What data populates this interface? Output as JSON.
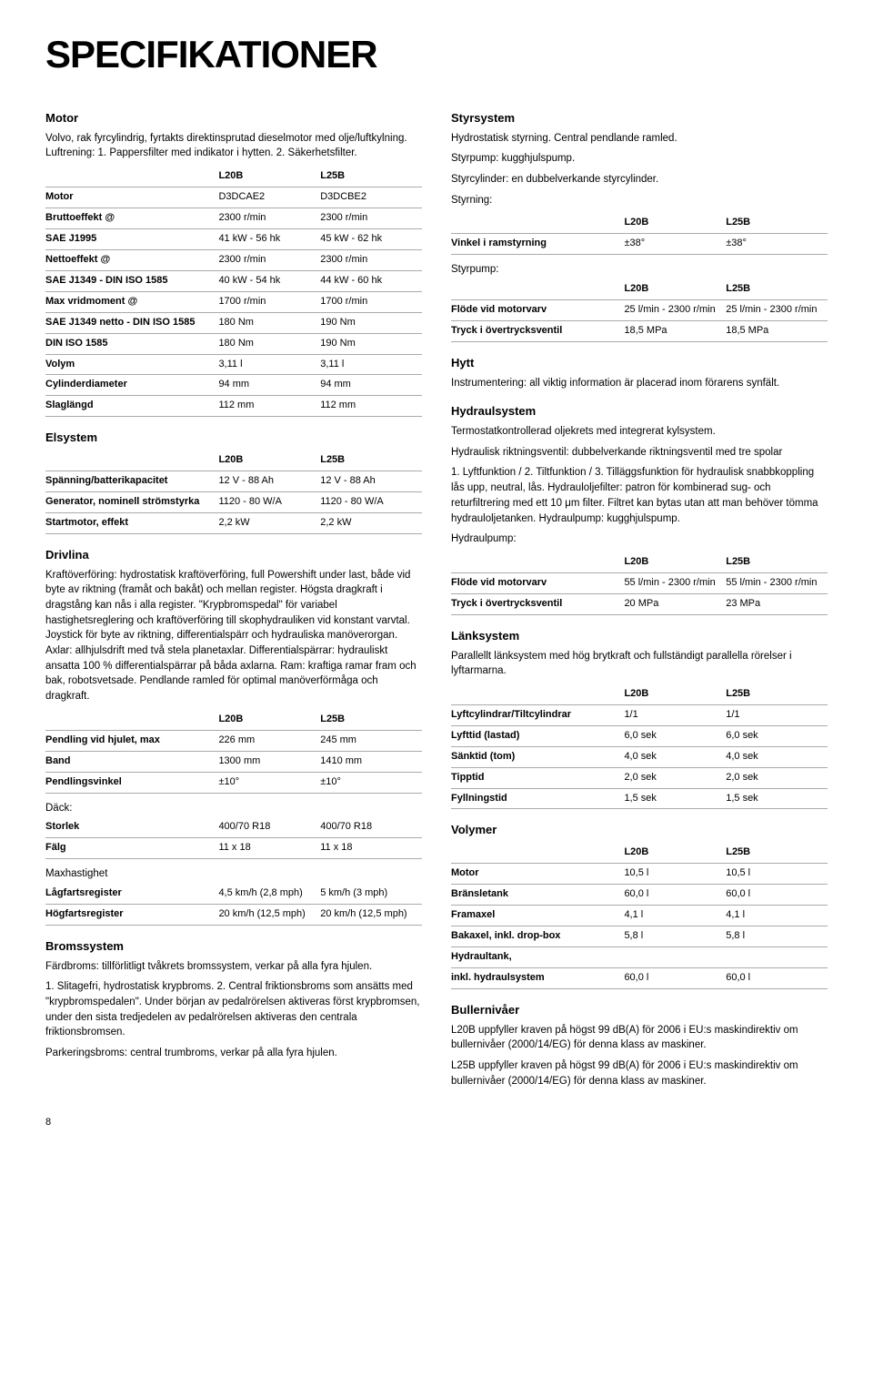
{
  "title": "SPECIFIKATIONER",
  "pageNumber": "8",
  "motor": {
    "heading": "Motor",
    "intro": "Volvo, rak fyrcylindrig, fyrtakts direktinsprutad dieselmotor med olje/luftkylning. Luftrening: 1. Pappersfilter med indikator i hytten. 2. Säkerhetsfilter.",
    "cols": [
      "",
      "L20B",
      "L25B"
    ],
    "rows": [
      [
        "Motor",
        "D3DCAE2",
        "D3DCBE2"
      ],
      [
        "Bruttoeffekt @",
        "2300 r/min",
        "2300 r/min"
      ],
      [
        "SAE J1995",
        "41 kW - 56 hk",
        "45 kW - 62 hk"
      ],
      [
        "Nettoeffekt @",
        "2300 r/min",
        "2300 r/min"
      ],
      [
        "SAE J1349 - DIN ISO 1585",
        "40 kW - 54 hk",
        "44 kW - 60 hk"
      ],
      [
        "Max vridmoment @",
        "1700 r/min",
        "1700 r/min"
      ],
      [
        "SAE J1349 netto - DIN ISO 1585",
        "180 Nm",
        "190 Nm"
      ],
      [
        "DIN ISO 1585",
        "180 Nm",
        "190 Nm"
      ],
      [
        "Volym",
        "3,11 l",
        "3,11 l"
      ],
      [
        "Cylinderdiameter",
        "94 mm",
        "94 mm"
      ],
      [
        "Slaglängd",
        "112 mm",
        "112 mm"
      ]
    ]
  },
  "elsystem": {
    "heading": "Elsystem",
    "cols": [
      "",
      "L20B",
      "L25B"
    ],
    "rows": [
      [
        "Spänning/batterikapacitet",
        "12 V - 88 Ah",
        "12 V - 88 Ah"
      ],
      [
        "Generator, nominell strömstyrka",
        "1120 - 80 W/A",
        "1120 - 80 W/A"
      ],
      [
        "Startmotor, effekt",
        "2,2 kW",
        "2,2 kW"
      ]
    ]
  },
  "drivlina": {
    "heading": "Drivlina",
    "text": "Kraftöverföring: hydrostatisk kraftöverföring, full Powershift under last, både vid byte av riktning (framåt och bakåt) och mellan register. Högsta dragkraft i dragstång kan nås i alla register. \"Krypbromspedal\" för variabel hastighetsreglering och kraftöverföring till skophydrauliken vid konstant varvtal. Joystick för byte av riktning, differentialspärr och hydrauliska manöverorgan. Axlar: allhjulsdrift med två stela planetaxlar. Differentialspärrar: hydrauliskt ansatta 100 % differentialspärrar på båda axlarna. Ram: kraftiga ramar fram och bak, robotsvetsade. Pendlande ramled för optimal manöverförmåga och dragkraft.",
    "cols": [
      "",
      "L20B",
      "L25B"
    ],
    "rows": [
      [
        "Pendling vid hjulet, max",
        "226 mm",
        "245 mm"
      ],
      [
        "Band",
        "1300 mm",
        "1410 mm"
      ],
      [
        "Pendlingsvinkel",
        "±10°",
        "±10°"
      ]
    ]
  },
  "dack": {
    "heading": "Däck:",
    "rows": [
      [
        "Storlek",
        "400/70 R18",
        "400/70 R18"
      ],
      [
        "Fälg",
        "11 x 18",
        "11 x 18"
      ]
    ]
  },
  "maxhastighet": {
    "heading": "Maxhastighet",
    "rows": [
      [
        "Lågfartsregister",
        "4,5 km/h (2,8 mph)",
        "5 km/h (3 mph)"
      ],
      [
        "Högfartsregister",
        "20 km/h (12,5 mph)",
        "20 km/h (12,5 mph)"
      ]
    ]
  },
  "bromssystem": {
    "heading": "Bromssystem",
    "p1": "Färdbroms: tillförlitligt tvåkrets bromssystem, verkar på alla fyra hjulen.",
    "p2": "1. Slitagefri, hydrostatisk krypbroms. 2. Central friktionsbroms som ansätts med \"krypbromspedalen\". Under början av pedalrörelsen aktiveras först krypbromsen, under den sista tredjedelen av pedalrörelsen aktiveras den centrala friktionsbromsen.",
    "p3": "Parkeringsbroms: central trumbroms, verkar på alla fyra hjulen."
  },
  "styrsystem": {
    "heading": "Styrsystem",
    "p1": "Hydrostatisk styrning. Central pendlande ramled.",
    "p2": "Styrpump: kugghjulspump.",
    "p3": "Styrcylinder: en dubbelverkande styrcylinder.",
    "p4": "Styrning:",
    "cols": [
      "",
      "L20B",
      "L25B"
    ],
    "rows": [
      [
        "Vinkel i ramstyrning",
        "±38°",
        "±38°"
      ]
    ]
  },
  "styrpump": {
    "heading": "Styrpump:",
    "cols": [
      "",
      "L20B",
      "L25B"
    ],
    "rows": [
      [
        "Flöde vid motorvarv",
        "25 l/min - 2300 r/min",
        "25 l/min - 2300 r/min"
      ],
      [
        "Tryck i övertrycksventil",
        "18,5 MPa",
        "18,5 MPa"
      ]
    ]
  },
  "hytt": {
    "heading": "Hytt",
    "text": "Instrumentering: all viktig information är placerad inom förarens synfält."
  },
  "hydraulsystem": {
    "heading": "Hydraulsystem",
    "p1": "Termostatkontrollerad oljekrets med integrerat kylsystem.",
    "p2": "Hydraulisk riktningsventil: dubbelverkande riktningsventil med tre spolar",
    "p3": "1. Lyftfunktion / 2. Tiltfunktion / 3. Tilläggsfunktion för hydraulisk snabbkoppling lås upp, neutral, lås. Hydrauloljefilter: patron för kombinerad sug- och returfiltrering med ett 10 μm filter. Filtret kan bytas utan att man behöver tömma hydrauloljetanken. Hydraulpump: kugghjulspump.",
    "p4": "Hydraulpump:",
    "cols": [
      "",
      "L20B",
      "L25B"
    ],
    "rows": [
      [
        "Flöde vid motorvarv",
        "55 l/min - 2300 r/min",
        "55 l/min - 2300 r/min"
      ],
      [
        "Tryck i övertrycksventil",
        "20 MPa",
        "23 MPa"
      ]
    ]
  },
  "lanksystem": {
    "heading": "Länksystem",
    "text": "Parallellt länksystem med hög brytkraft och fullständigt parallella rörelser i lyftarmarna.",
    "cols": [
      "",
      "L20B",
      "L25B"
    ],
    "rows": [
      [
        "Lyftcylindrar/Tiltcylindrar",
        "1/1",
        "1/1"
      ],
      [
        "Lyfttid (lastad)",
        "6,0 sek",
        "6,0 sek"
      ],
      [
        "Sänktid (tom)",
        "4,0 sek",
        "4,0 sek"
      ],
      [
        "Tipptid",
        "2,0 sek",
        "2,0 sek"
      ],
      [
        "Fyllningstid",
        "1,5 sek",
        "1,5 sek"
      ]
    ]
  },
  "volymer": {
    "heading": "Volymer",
    "cols": [
      "",
      "L20B",
      "L25B"
    ],
    "rows": [
      [
        "Motor",
        "10,5 l",
        "10,5 l"
      ],
      [
        "Bränsletank",
        "60,0 l",
        "60,0 l"
      ],
      [
        "Framaxel",
        "4,1 l",
        "4,1 l"
      ],
      [
        "Bakaxel, inkl. drop-box",
        "5,8 l",
        "5,8 l"
      ],
      [
        "Hydraultank,",
        "",
        ""
      ],
      [
        "inkl. hydraulsystem",
        "60,0 l",
        "60,0 l"
      ]
    ]
  },
  "bullernivaer": {
    "heading": "Bullernivåer",
    "p1": "L20B uppfyller kraven på högst 99 dB(A) för 2006 i EU:s maskindirektiv om bullernivåer (2000/14/EG) för denna klass av maskiner.",
    "p2": "L25B uppfyller kraven på högst 99 dB(A) för 2006 i EU:s maskindirektiv om bullernivåer (2000/14/EG) för denna klass av maskiner."
  }
}
